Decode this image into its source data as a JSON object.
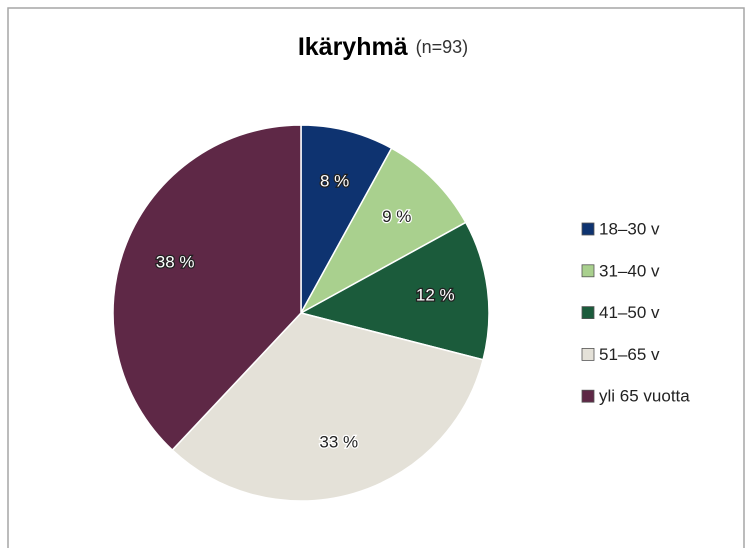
{
  "chart_data": {
    "type": "pie",
    "title": "Ikäryhmä",
    "subtitle": "(n=93)",
    "categories": [
      "18–30 v",
      "31–40 v",
      "41–50 v",
      "51–65 v",
      "yli 65 vuotta"
    ],
    "values": [
      8,
      9,
      12,
      33,
      38
    ],
    "value_labels": [
      "8 %",
      "9 %",
      "12 %",
      "33 %",
      "38 %"
    ],
    "colors": [
      "#0e3370",
      "#a9d08e",
      "#1b5b3b",
      "#e4e1d8",
      "#5e2846"
    ],
    "legend": "right"
  }
}
